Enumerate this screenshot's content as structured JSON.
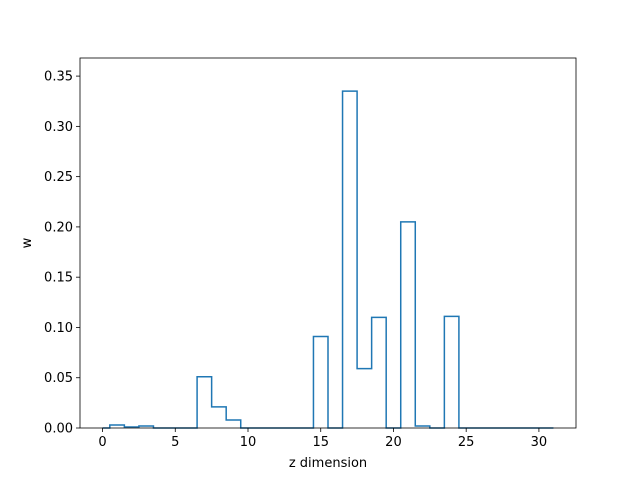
{
  "chart_data": {
    "type": "step",
    "title": "",
    "xlabel": "z dimension",
    "ylabel": "w",
    "xlim": [
      -1.55,
      32.55
    ],
    "ylim": [
      0.0,
      0.368
    ],
    "x_ticks": [
      0,
      5,
      10,
      15,
      20,
      25,
      30
    ],
    "y_ticks": [
      0.0,
      0.05,
      0.1,
      0.15,
      0.2,
      0.25,
      0.3,
      0.35
    ],
    "x_tick_labels": [
      "0",
      "5",
      "10",
      "15",
      "20",
      "25",
      "30"
    ],
    "y_tick_labels": [
      "0.00",
      "0.05",
      "0.10",
      "0.15",
      "0.20",
      "0.25",
      "0.30",
      "0.35"
    ],
    "grid": false,
    "line_color": "#1f77b4",
    "series": [
      {
        "x": [
          0,
          1,
          2,
          3,
          4,
          5,
          6,
          7,
          8,
          9,
          10,
          11,
          12,
          13,
          14,
          15,
          16,
          17,
          18,
          19,
          20,
          21,
          22,
          23,
          24,
          25,
          26,
          27,
          28,
          29,
          30,
          31
        ],
        "values": [
          0.0,
          0.003,
          0.001,
          0.002,
          0.0,
          0.0,
          0.0,
          0.051,
          0.021,
          0.008,
          0.0,
          0.0,
          0.0,
          0.0,
          0.0,
          0.091,
          0.0,
          0.335,
          0.059,
          0.11,
          0.0,
          0.205,
          0.002,
          0.0,
          0.111,
          0.0,
          0.0,
          0.0,
          0.0,
          0.0,
          0.0,
          0.0
        ]
      }
    ]
  }
}
